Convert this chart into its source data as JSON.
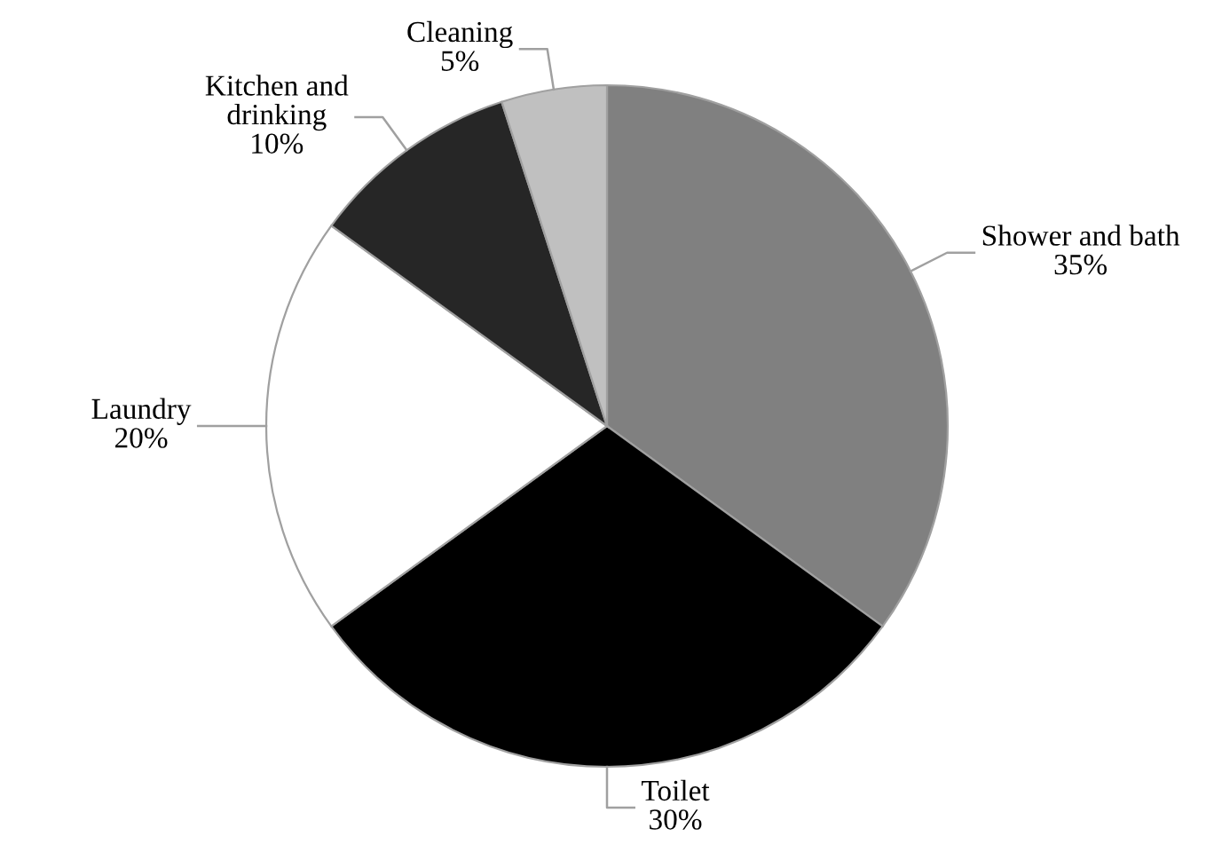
{
  "chart_data": {
    "type": "pie",
    "categories": [
      "Shower and bath",
      "Toilet",
      "Laundry",
      "Kitchen and\ndrinking",
      "Cleaning"
    ],
    "values": [
      35,
      30,
      20,
      10,
      5
    ],
    "value_labels": [
      "35%",
      "30%",
      "20%",
      "10%",
      "5%"
    ],
    "colors": [
      "#808080",
      "#000000",
      "#ffffff",
      "#262626",
      "#c0c0c0"
    ],
    "legend": false
  }
}
